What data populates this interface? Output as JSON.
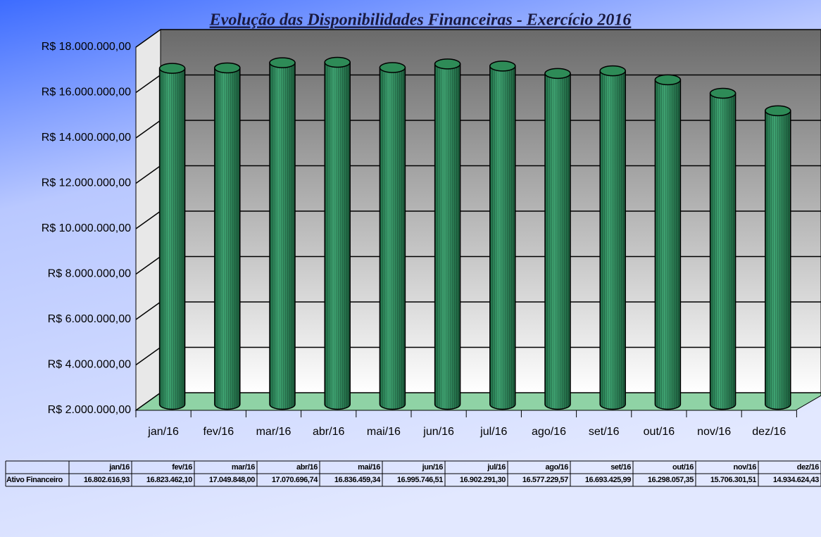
{
  "chart_data": {
    "type": "bar",
    "title": "Evolução das Disponibilidades Financeiras - Exercício 2016",
    "categories": [
      "jan/16",
      "fev/16",
      "mar/16",
      "abr/16",
      "mai/16",
      "jun/16",
      "jul/16",
      "ago/16",
      "set/16",
      "out/16",
      "nov/16",
      "dez/16"
    ],
    "series": [
      {
        "name": "Ativo Financeiro",
        "color": "#2e8b57",
        "values": [
          16802616.93,
          16823462.1,
          17049848.0,
          17070696.74,
          16836459.34,
          16995746.51,
          16902291.3,
          16577229.57,
          16693425.99,
          16298057.35,
          15706301.51,
          14934624.43
        ],
        "value_labels": [
          "16.802.616,93",
          "16.823.462,10",
          "17.049.848,00",
          "17.070.696,74",
          "16.836.459,34",
          "16.995.746,51",
          "16.902.291,30",
          "16.577.229,57",
          "16.693.425,99",
          "16.298.057,35",
          "15.706.301,51",
          "14.934.624,43"
        ]
      }
    ],
    "ylim": [
      2000000,
      18000000
    ],
    "yticks": [
      {
        "value": 2000000,
        "label": "R$ 2.000.000,00"
      },
      {
        "value": 4000000,
        "label": "R$ 4.000.000,00"
      },
      {
        "value": 6000000,
        "label": "R$ 6.000.000,00"
      },
      {
        "value": 8000000,
        "label": "R$ 8.000.000,00"
      },
      {
        "value": 10000000,
        "label": "R$ 10.000.000,00"
      },
      {
        "value": 12000000,
        "label": "R$ 12.000.000,00"
      },
      {
        "value": 14000000,
        "label": "R$ 14.000.000,00"
      },
      {
        "value": 16000000,
        "label": "R$ 16.000.000,00"
      },
      {
        "value": 18000000,
        "label": "R$ 18.000.000,00"
      }
    ],
    "grid": true
  }
}
